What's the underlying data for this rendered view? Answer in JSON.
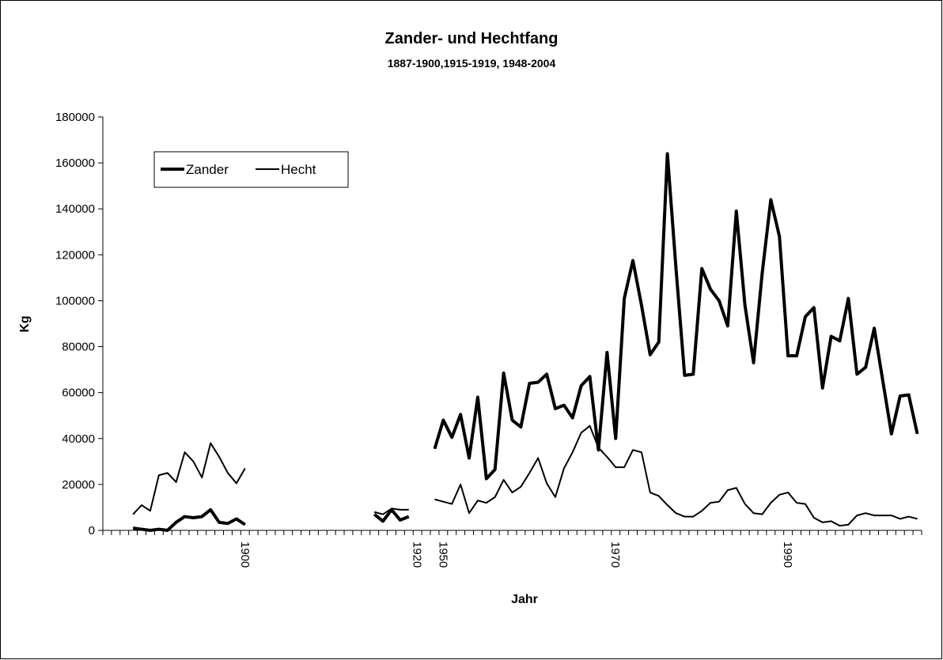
{
  "chart_data": {
    "type": "line",
    "title": "Zander- und Hechtfang",
    "subtitle": "1887-1900,1915-1919, 1948-2004",
    "x_label": "Jahr",
    "y_label": "Kg",
    "categories": [
      null,
      null,
      null,
      null,
      null,
      null,
      null,
      null,
      null,
      null,
      null,
      null,
      null,
      null,
      null,
      null,
      "1900",
      null,
      null,
      null,
      null,
      null,
      null,
      null,
      null,
      null,
      null,
      null,
      null,
      null,
      null,
      null,
      null,
      null,
      null,
      null,
      "1920",
      null,
      null,
      "1950",
      null,
      null,
      null,
      null,
      null,
      null,
      null,
      null,
      null,
      null,
      null,
      null,
      null,
      null,
      null,
      null,
      null,
      null,
      null,
      "1970",
      null,
      null,
      null,
      null,
      null,
      null,
      null,
      null,
      null,
      null,
      null,
      null,
      null,
      null,
      null,
      null,
      null,
      null,
      null,
      "1990",
      null,
      null,
      null,
      null,
      null,
      null,
      null,
      null,
      null,
      null,
      null,
      null,
      null,
      null,
      null
    ],
    "series": [
      {
        "name": "Zander",
        "color": "#000000",
        "width": 4,
        "values": [
          null,
          null,
          null,
          1000,
          500,
          0,
          500,
          0,
          3500,
          6000,
          5500,
          6000,
          9000,
          3500,
          3000,
          5000,
          2500,
          null,
          null,
          null,
          null,
          null,
          null,
          null,
          null,
          null,
          null,
          null,
          null,
          null,
          null,
          7000,
          4000,
          9000,
          4500,
          6000,
          null,
          null,
          35500,
          48000,
          40500,
          50500,
          31500,
          58000,
          22500,
          26500,
          68500,
          48000,
          45000,
          64000,
          64500,
          68000,
          53000,
          54500,
          49000,
          63000,
          67000,
          35000,
          77500,
          40000,
          101000,
          117500,
          98000,
          76500,
          82000,
          164000,
          114000,
          67500,
          68000,
          114000,
          105000,
          100000,
          89000,
          139000,
          98000,
          73000,
          112000,
          144000,
          128000,
          76000,
          76000,
          93000,
          97000,
          62000,
          84500,
          82500,
          101000,
          68000,
          71000,
          88000,
          65000,
          42000,
          58500,
          59000,
          42000
        ]
      },
      {
        "name": "Hecht",
        "color": "#000000",
        "width": 2,
        "values": [
          null,
          null,
          null,
          7000,
          11000,
          8500,
          24000,
          25000,
          21000,
          34000,
          30000,
          23000,
          38000,
          32000,
          25000,
          20500,
          27000,
          null,
          null,
          null,
          null,
          null,
          null,
          null,
          null,
          null,
          null,
          null,
          null,
          null,
          null,
          8000,
          7000,
          9500,
          9000,
          9000,
          null,
          null,
          13500,
          12500,
          11500,
          20000,
          7500,
          13000,
          12000,
          14500,
          22000,
          16500,
          19000,
          25000,
          31500,
          20500,
          14500,
          27000,
          34000,
          42500,
          45500,
          36000,
          32000,
          27500,
          27500,
          35000,
          34000,
          16500,
          15000,
          11000,
          7500,
          6000,
          6000,
          8500,
          12000,
          12500,
          17500,
          18500,
          11500,
          7500,
          7000,
          12000,
          15500,
          16500,
          12000,
          11500,
          5500,
          3500,
          4000,
          2000,
          2500,
          6500,
          7500,
          6500,
          6500,
          6500,
          5000,
          6000,
          5000
        ]
      }
    ],
    "ylim": [
      0,
      180000
    ],
    "yticks": [
      0,
      20000,
      40000,
      60000,
      80000,
      100000,
      120000,
      140000,
      160000,
      180000
    ],
    "grid": false,
    "legend": "upper left"
  }
}
